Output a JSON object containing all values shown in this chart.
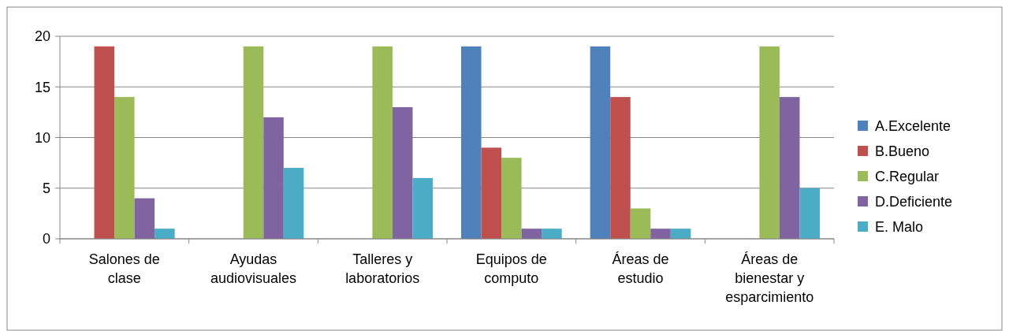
{
  "chart_data": {
    "type": "bar",
    "categories": [
      "Salones de clase",
      "Ayudas audiovisuales",
      "Talleres y laboratorios",
      "Equipos de computo",
      "Áreas de estudio",
      "Áreas de bienestar y esparcimiento"
    ],
    "series": [
      {
        "name": "A.Excelente",
        "color": "#4f81bd",
        "values": [
          0,
          0,
          0,
          19,
          19,
          0
        ]
      },
      {
        "name": "B.Bueno",
        "color": "#c0504d",
        "values": [
          19,
          0,
          0,
          9,
          14,
          0
        ]
      },
      {
        "name": "C.Regular",
        "color": "#9bbb59",
        "values": [
          14,
          19,
          19,
          8,
          3,
          19
        ]
      },
      {
        "name": "D.Deficiente",
        "color": "#8064a2",
        "values": [
          4,
          12,
          13,
          1,
          1,
          14
        ]
      },
      {
        "name": "E. Malo",
        "color": "#4bacc6",
        "values": [
          1,
          7,
          6,
          1,
          1,
          5
        ]
      }
    ],
    "ylim": [
      0,
      20
    ],
    "yticks": [
      0,
      5,
      10,
      15,
      20
    ],
    "grid": "y",
    "legend": "right"
  }
}
